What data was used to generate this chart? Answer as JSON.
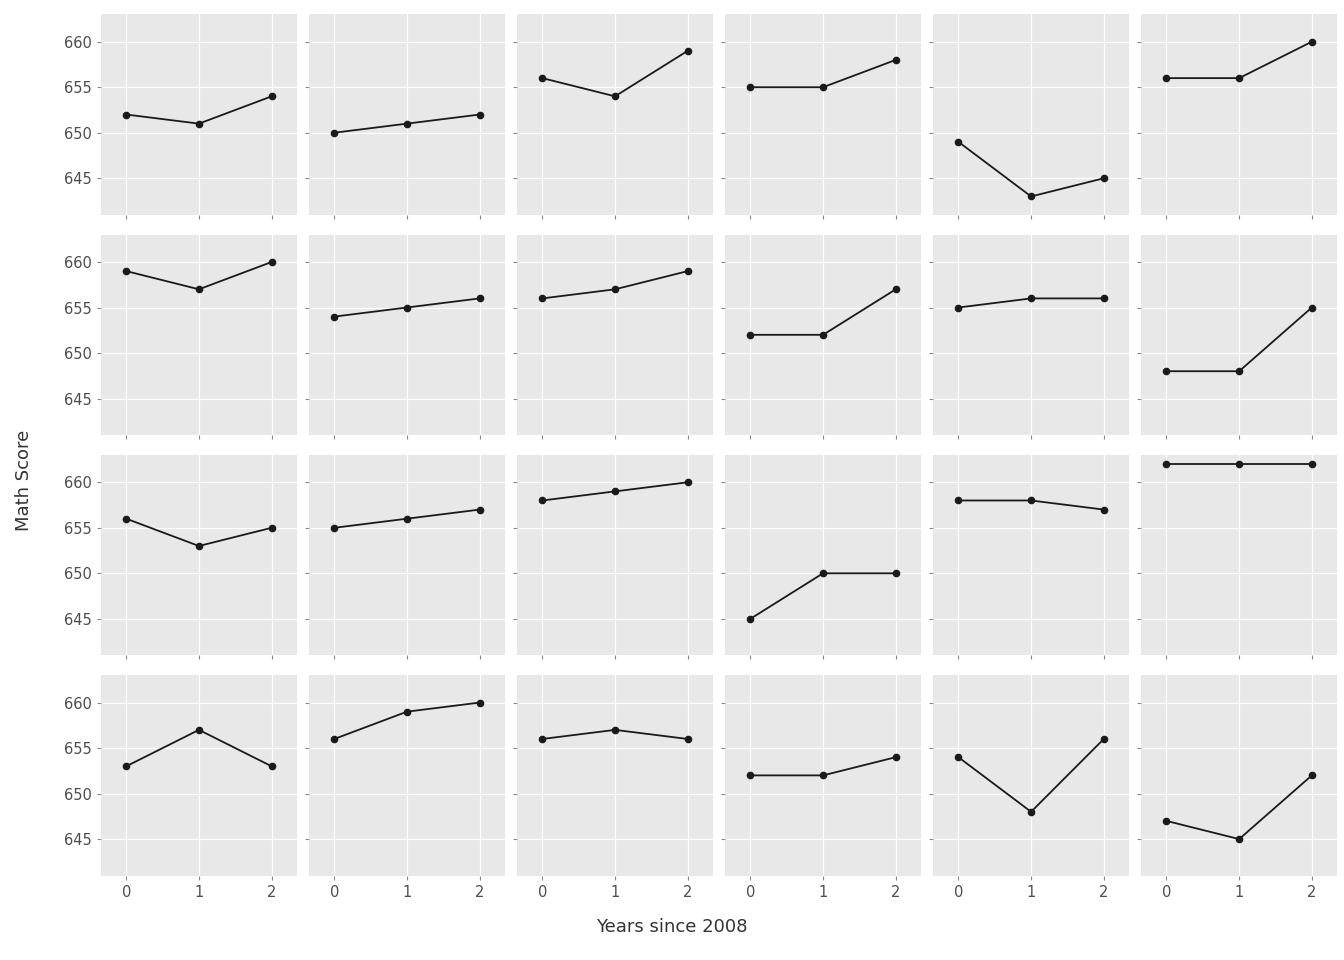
{
  "schools": [
    {
      "id": 1,
      "scores": [
        652,
        651,
        654
      ]
    },
    {
      "id": 2,
      "scores": [
        650,
        651,
        652
      ]
    },
    {
      "id": 3,
      "scores": [
        656,
        654,
        659
      ]
    },
    {
      "id": 4,
      "scores": [
        655,
        655,
        658
      ]
    },
    {
      "id": 5,
      "scores": [
        649,
        643,
        645
      ]
    },
    {
      "id": 6,
      "scores": [
        656,
        656,
        660
      ]
    },
    {
      "id": 7,
      "scores": [
        659,
        657,
        660
      ]
    },
    {
      "id": 8,
      "scores": [
        654,
        655,
        656
      ]
    },
    {
      "id": 9,
      "scores": [
        656,
        657,
        659
      ]
    },
    {
      "id": 10,
      "scores": [
        652,
        652,
        657
      ]
    },
    {
      "id": 11,
      "scores": [
        655,
        656,
        656
      ]
    },
    {
      "id": 12,
      "scores": [
        648,
        648,
        655
      ]
    },
    {
      "id": 13,
      "scores": [
        656,
        653,
        655
      ]
    },
    {
      "id": 14,
      "scores": [
        655,
        656,
        657
      ]
    },
    {
      "id": 15,
      "scores": [
        658,
        659,
        660
      ]
    },
    {
      "id": 16,
      "scores": [
        645,
        650,
        650
      ]
    },
    {
      "id": 17,
      "scores": [
        658,
        658,
        657
      ]
    },
    {
      "id": 18,
      "scores": [
        662,
        662,
        662
      ]
    },
    {
      "id": 19,
      "scores": [
        653,
        657,
        653
      ]
    },
    {
      "id": 20,
      "scores": [
        656,
        659,
        660
      ]
    },
    {
      "id": 21,
      "scores": [
        656,
        657,
        656
      ]
    },
    {
      "id": 22,
      "scores": [
        652,
        652,
        654
      ]
    },
    {
      "id": 23,
      "scores": [
        654,
        648,
        656
      ]
    },
    {
      "id": 24,
      "scores": [
        647,
        645,
        652
      ]
    }
  ],
  "nrows": 4,
  "ncols": 6,
  "years": [
    0,
    1,
    2
  ],
  "xlabel": "Years since 2008",
  "ylabel": "Math Score",
  "bg_color": "#e8e8e8",
  "outer_bg": "#ffffff",
  "line_color": "#1a1a1a",
  "marker_color": "#1a1a1a",
  "grid_color": "#ffffff",
  "tick_label_color": "#4d4d4d",
  "axis_label_color": "#333333",
  "yticks": [
    645,
    650,
    655,
    660
  ],
  "xticks": [
    0,
    1,
    2
  ],
  "label_fontsize": 13,
  "tick_fontsize": 10.5
}
